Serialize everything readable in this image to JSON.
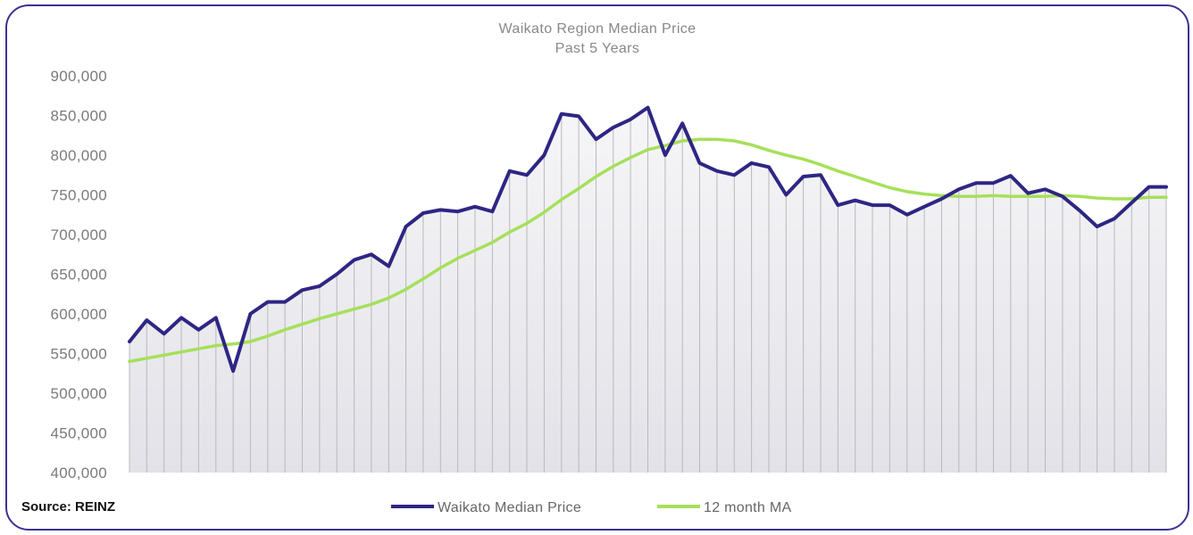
{
  "colors": {
    "median_line": "#2e2683",
    "ma_line": "#a6e05a",
    "frame_border": "#3c3291",
    "fill_top": "#f6f6f8",
    "fill_bottom": "#e2e2e8",
    "grid_drop": "#b9b9bd"
  },
  "source_label": "Source: REINZ",
  "chart_data": {
    "type": "line",
    "title": "Waikato Region Median Price",
    "subtitle": "Past 5 Years",
    "xlabel": "",
    "ylabel": "",
    "ylim": [
      400000,
      900000
    ],
    "yticks": [
      900000,
      850000,
      800000,
      750000,
      700000,
      650000,
      600000,
      550000,
      500000,
      450000,
      400000
    ],
    "ytick_labels": [
      "900,000",
      "850,000",
      "800,000",
      "750,000",
      "700,000",
      "650,000",
      "600,000",
      "550,000",
      "500,000",
      "450,000",
      "400,000"
    ],
    "grid": false,
    "legend_position": "bottom-center",
    "x": [
      1,
      2,
      3,
      4,
      5,
      6,
      7,
      8,
      9,
      10,
      11,
      12,
      13,
      14,
      15,
      16,
      17,
      18,
      19,
      20,
      21,
      22,
      23,
      24,
      25,
      26,
      27,
      28,
      29,
      30,
      31,
      32,
      33,
      34,
      35,
      36,
      37,
      38,
      39,
      40,
      41,
      42,
      43,
      44,
      45,
      46,
      47,
      48,
      49,
      50,
      51,
      52,
      53,
      54,
      55,
      56,
      57,
      58,
      59,
      60,
      61
    ],
    "series": [
      {
        "name": "Waikato Median Price",
        "color": "#2e2683",
        "values": [
          565000,
          592000,
          575000,
          595000,
          580000,
          595000,
          528000,
          600000,
          615000,
          615000,
          630000,
          635000,
          650000,
          668000,
          675000,
          660000,
          710000,
          727000,
          731000,
          729000,
          735000,
          729000,
          780000,
          775000,
          800000,
          852000,
          849000,
          820000,
          835000,
          845000,
          860000,
          800000,
          840000,
          790000,
          780000,
          775000,
          790000,
          785000,
          750000,
          773000,
          775000,
          737000,
          743000,
          737000,
          737000,
          725000,
          735000,
          745000,
          757000,
          765000,
          765000,
          774000,
          752000,
          757000,
          748000,
          730000,
          710000,
          720000,
          740000,
          760000,
          760000
        ]
      },
      {
        "name": "12 month MA",
        "color": "#a6e05a",
        "values": [
          540000,
          544000,
          548000,
          552000,
          556000,
          560000,
          562000,
          565000,
          572000,
          580000,
          587000,
          594000,
          600000,
          606000,
          612000,
          620000,
          631000,
          644000,
          658000,
          670000,
          680000,
          690000,
          703000,
          714000,
          728000,
          744000,
          758000,
          773000,
          786000,
          797000,
          807000,
          812000,
          818000,
          820000,
          820000,
          818000,
          813000,
          806000,
          800000,
          795000,
          788000,
          780000,
          773000,
          766000,
          759000,
          754000,
          751000,
          749000,
          748000,
          748000,
          749000,
          748000,
          748000,
          748000,
          749000,
          748000,
          746000,
          745000,
          745000,
          747000,
          747000
        ]
      }
    ]
  }
}
